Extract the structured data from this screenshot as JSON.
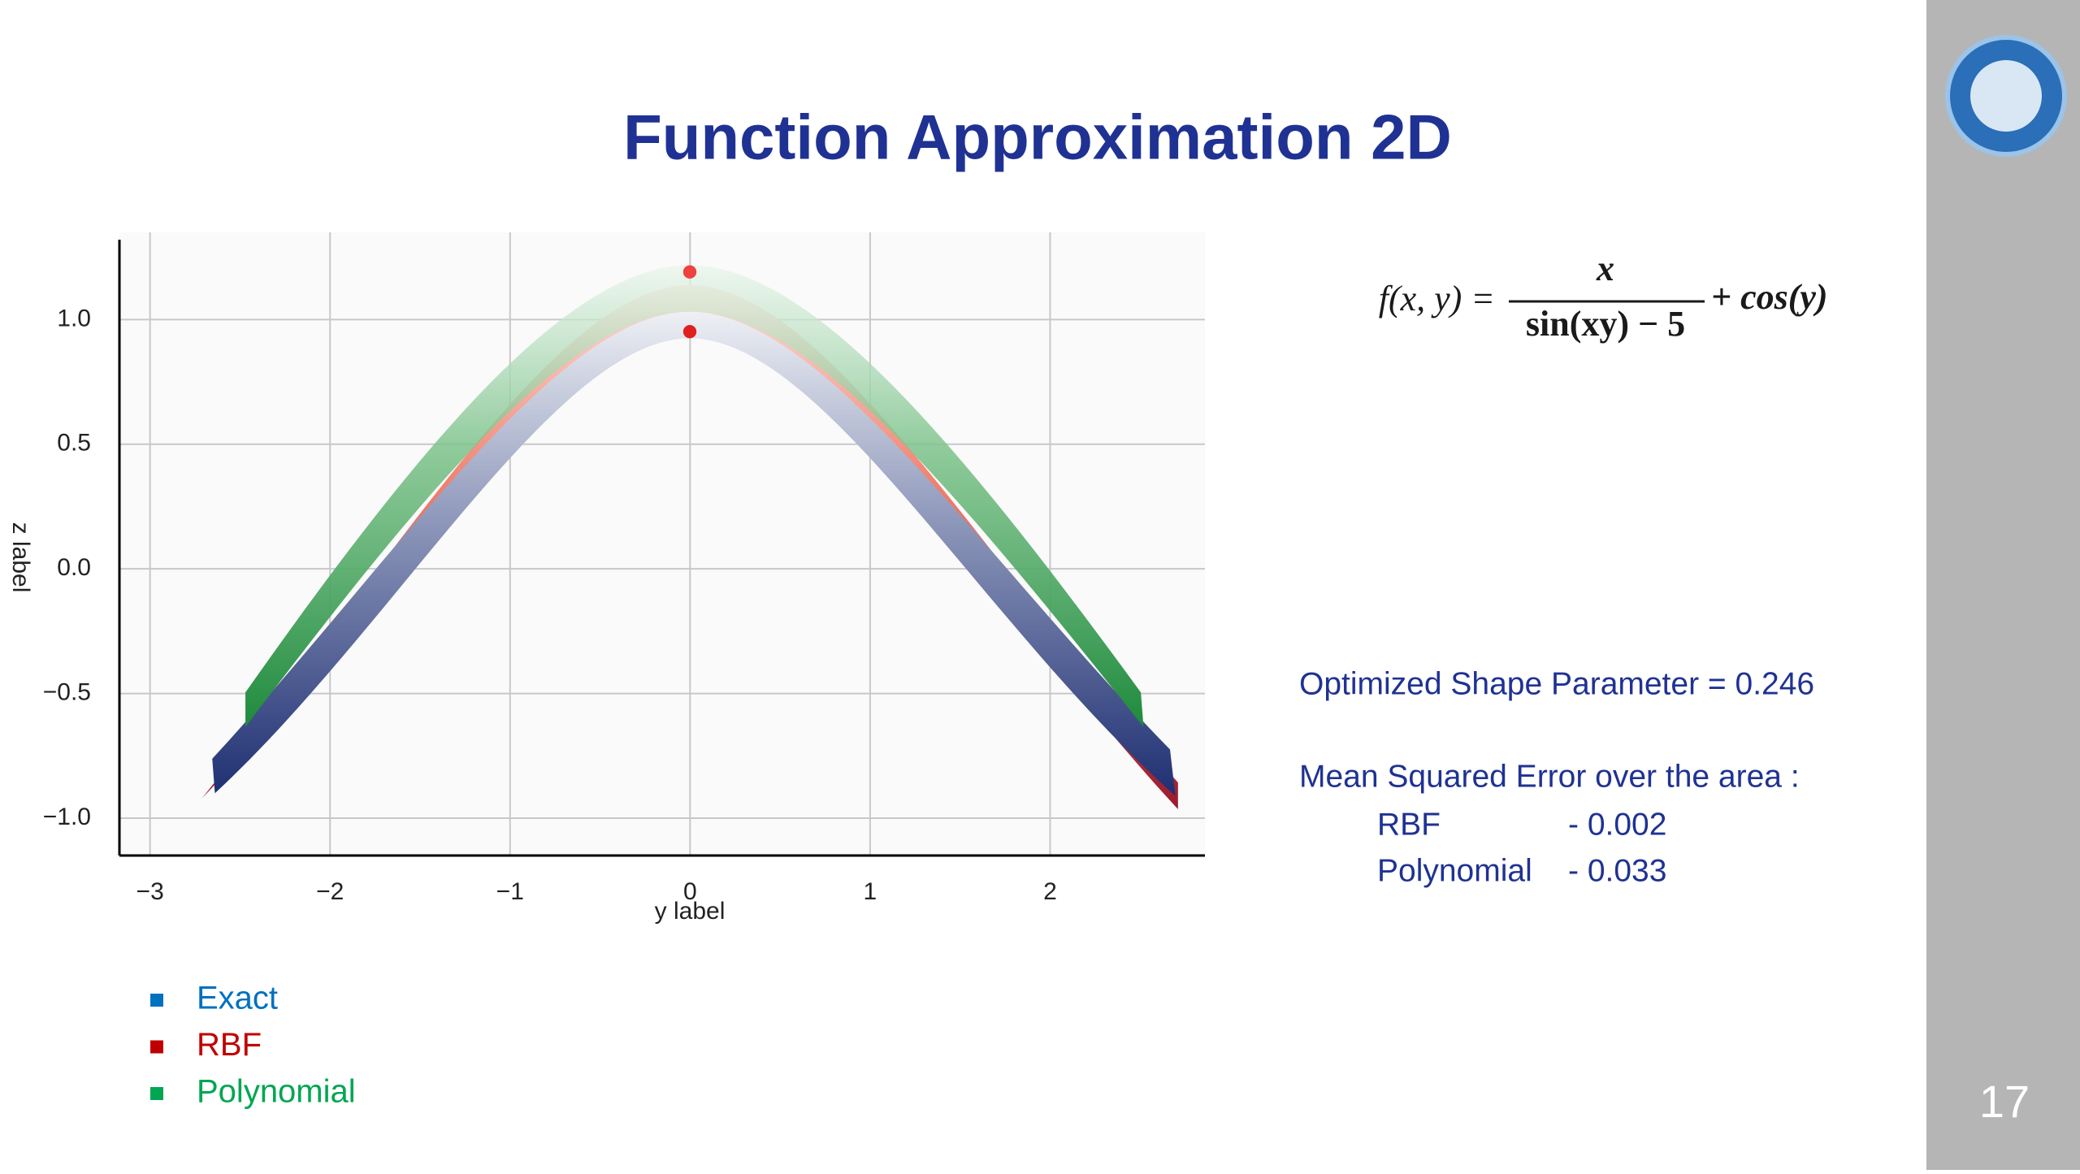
{
  "title": "Function Approximation 2D",
  "formula": {
    "lhs": "f(x, y) =",
    "numerator": "x",
    "denominator": "sin(xy) − 5",
    "rhs": "+ cos(y)"
  },
  "chart_data": {
    "type": "surface",
    "xlabel": "y label",
    "ylabel": "z label",
    "xlim": [
      -3.17,
      2.86
    ],
    "ylim": [
      -1.15,
      1.35
    ],
    "xticks": [
      {
        "value": -3,
        "label": "−3"
      },
      {
        "value": -2,
        "label": "−2"
      },
      {
        "value": -1,
        "label": "−1"
      },
      0,
      1,
      2
    ],
    "yticks": [
      {
        "value": -1,
        "label": "−1.0"
      },
      {
        "value": -0.5,
        "label": "−0.5"
      },
      {
        "value": 0,
        "label": "0.0"
      },
      {
        "value": 0.5,
        "label": "0.5"
      },
      {
        "value": 1,
        "label": "1.0"
      }
    ],
    "grid": true
  },
  "results": {
    "shape": "Optimized Shape Parameter =  0.246",
    "mse": "Mean Squared Error over the area :",
    "rows": [
      [
        "RBF",
        "-  0.002"
      ],
      [
        "Polynomial",
        "-  0.033"
      ]
    ]
  },
  "legend": [
    {
      "name": "Exact",
      "color": "#0070c0"
    },
    {
      "name": "RBF",
      "color": "#c00000"
    },
    {
      "name": "Polynomial",
      "color": "#00a651"
    }
  ],
  "page_number": "17"
}
